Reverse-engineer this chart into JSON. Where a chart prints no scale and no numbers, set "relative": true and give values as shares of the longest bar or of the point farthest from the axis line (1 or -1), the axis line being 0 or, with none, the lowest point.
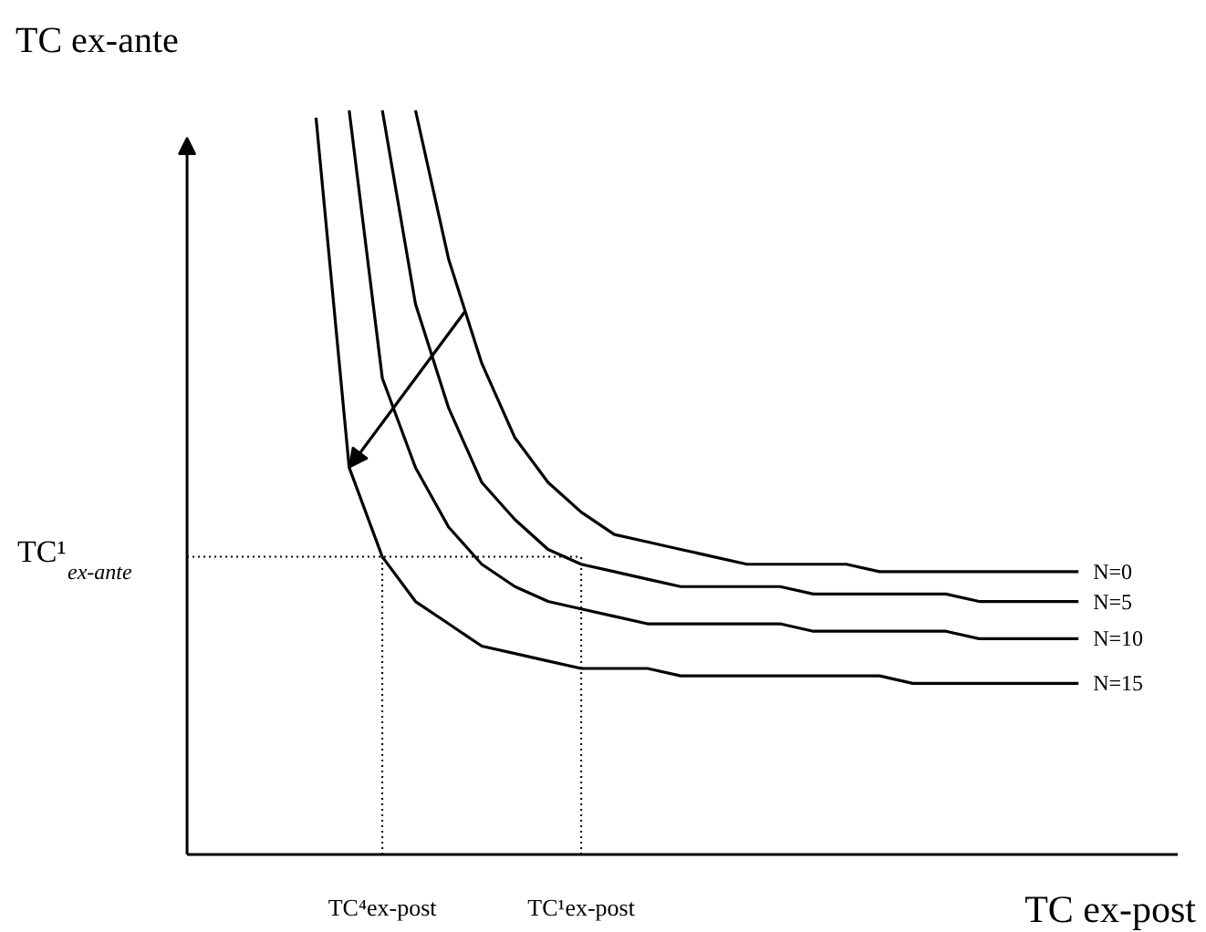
{
  "chart_data": {
    "type": "line",
    "relative": true,
    "xlabel": "TC ex-post",
    "ylabel": "TC ex-ante",
    "categories": [
      null,
      null,
      null,
      null,
      null,
      "TC⁴ex-post",
      null,
      null,
      null,
      null,
      null,
      "TC¹ex-post",
      null,
      null,
      null,
      null,
      null,
      null,
      null,
      null,
      null,
      null,
      null,
      null,
      null,
      null,
      null
    ],
    "grid": false,
    "series": [
      {
        "name": "N=0",
        "color": "#000000",
        "values": [
          null,
          null,
          null,
          null,
          null,
          null,
          1.0,
          0.8,
          0.66,
          0.56,
          0.5,
          0.46,
          0.43,
          0.42,
          0.41,
          0.4,
          0.39,
          0.39,
          0.39,
          0.39,
          0.38,
          0.38,
          0.38,
          0.38,
          0.38,
          0.38,
          0.38
        ]
      },
      {
        "name": "N=5",
        "color": "#000000",
        "values": [
          null,
          null,
          null,
          null,
          null,
          1.0,
          0.74,
          0.6,
          0.5,
          0.45,
          0.41,
          0.39,
          0.38,
          0.37,
          0.36,
          0.36,
          0.36,
          0.36,
          0.35,
          0.35,
          0.35,
          0.35,
          0.35,
          0.34,
          0.34,
          0.34,
          0.34
        ]
      },
      {
        "name": "N=10",
        "color": "#000000",
        "values": [
          null,
          null,
          null,
          null,
          1.0,
          0.64,
          0.52,
          0.44,
          0.39,
          0.36,
          0.34,
          0.33,
          0.32,
          0.31,
          0.31,
          0.31,
          0.31,
          0.31,
          0.3,
          0.3,
          0.3,
          0.3,
          0.3,
          0.29,
          0.29,
          0.29,
          0.29
        ]
      },
      {
        "name": "N=15",
        "color": "#000000",
        "values": [
          null,
          null,
          null,
          0.99,
          0.52,
          0.4,
          0.34,
          0.31,
          0.28,
          0.27,
          0.26,
          0.25,
          0.25,
          0.25,
          0.24,
          0.24,
          0.24,
          0.24,
          0.24,
          0.24,
          0.24,
          0.23,
          0.23,
          0.23,
          0.23,
          0.23,
          0.23
        ]
      }
    ],
    "ref_lines": [
      {
        "axis": "y",
        "value": 0.4,
        "label": "TC¹$_{ex-ante}$",
        "line_style": "dotted"
      },
      {
        "axis": "x",
        "value": "TC⁴ex-post",
        "line_style": "dotted"
      },
      {
        "axis": "x",
        "value": "TC¹ex-post",
        "line_style": "dotted"
      }
    ]
  }
}
